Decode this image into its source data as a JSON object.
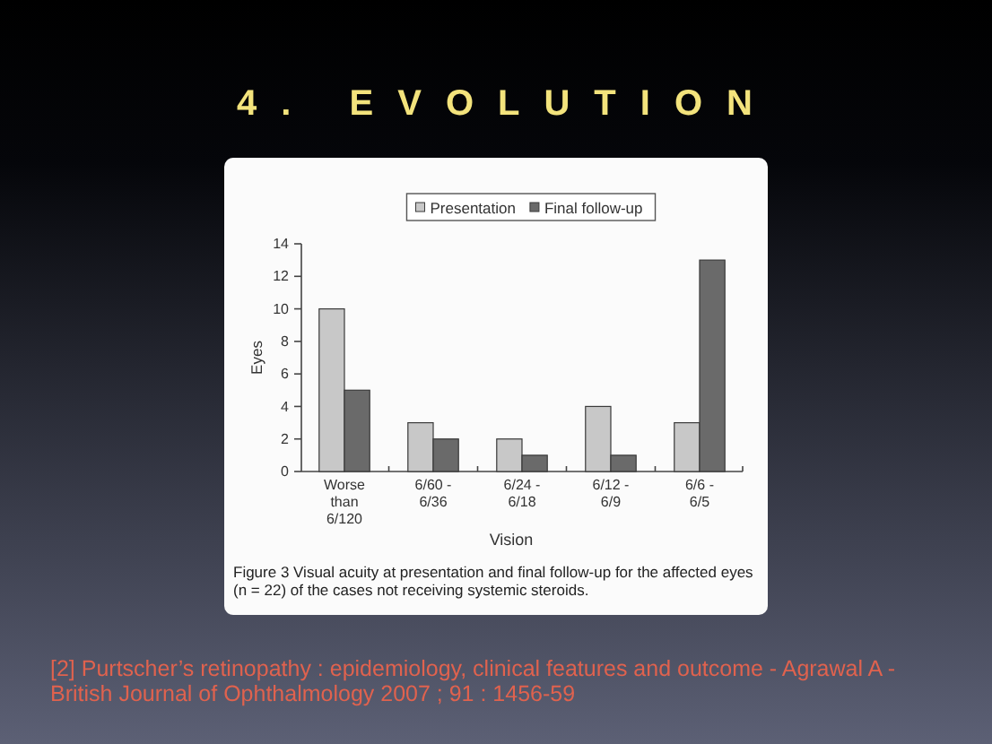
{
  "chart_data": {
    "type": "bar",
    "title": "4. EVOLUTION",
    "xlabel": "Vision",
    "ylabel": "Eyes",
    "categories": [
      "Worse than 6/120",
      "6/60 - 6/36",
      "6/24 - 6/18",
      "6/12 - 6/9",
      "6/6 - 6/5"
    ],
    "series": [
      {
        "name": "Presentation",
        "color": "#c8c8c8",
        "values": [
          10,
          3,
          2,
          4,
          3
        ]
      },
      {
        "name": "Final follow-up",
        "color": "#6a6a6a",
        "values": [
          5,
          2,
          1,
          1,
          13
        ]
      }
    ],
    "ylim": [
      0,
      14
    ],
    "yticks": [
      0,
      2,
      4,
      6,
      8,
      10,
      12,
      14
    ],
    "legend": "top",
    "annotations": [
      "Figure 3 Visual acuity at presentation and final follow-up for the affected eyes (n = 22) of the cases not receiving systemic steroids.",
      "[2] Purtscher’s retinopathy : epidemiology, clinical features and outcome - Agrawal A - British Journal of Ophthalmology 2007 ; 91 : 1456-59"
    ]
  }
}
